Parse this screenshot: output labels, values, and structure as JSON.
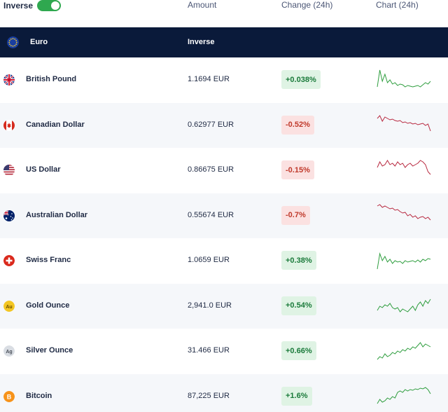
{
  "header": {
    "toggle_label": "Inverse",
    "toggle_on": true,
    "columns": [
      "Amount",
      "Change (24h)",
      "Chart (24h)"
    ],
    "toggle_color": "#2fa84f"
  },
  "base": {
    "name": "Euro",
    "column": "Inverse",
    "icon": "eu-flag-icon"
  },
  "colors": {
    "up": "#2f9e3f",
    "down": "#b8283f"
  },
  "rows": [
    {
      "name": "British Pound",
      "amount": "1.1694 EUR",
      "change": "+0.038%",
      "direction": "up",
      "icon": "uk-flag-icon",
      "spark": [
        30,
        6,
        22,
        12,
        24,
        20,
        26,
        24,
        28,
        26,
        27,
        30,
        28,
        29,
        30,
        29,
        28,
        30,
        27,
        24,
        26,
        22
      ]
    },
    {
      "name": "Canadian Dollar",
      "amount": "0.62977 EUR",
      "change": "-0.52%",
      "direction": "down",
      "icon": "canada-flag-icon",
      "spark": [
        10,
        6,
        14,
        8,
        10,
        12,
        11,
        13,
        14,
        13,
        16,
        15,
        17,
        16,
        18,
        17,
        19,
        18,
        17,
        20,
        18,
        28
      ]
    },
    {
      "name": "US Dollar",
      "amount": "0.86675 EUR",
      "change": "-0.15%",
      "direction": "down",
      "icon": "us-flag-icon",
      "spark": [
        16,
        8,
        14,
        12,
        6,
        12,
        10,
        14,
        8,
        12,
        10,
        16,
        12,
        10,
        14,
        12,
        10,
        6,
        8,
        12,
        22,
        26
      ]
    },
    {
      "name": "Australian Dollar",
      "amount": "0.55674 EUR",
      "change": "-0.7%",
      "direction": "down",
      "icon": "australia-flag-icon",
      "spark": [
        6,
        4,
        8,
        6,
        8,
        10,
        9,
        12,
        11,
        14,
        16,
        15,
        20,
        18,
        22,
        20,
        24,
        22,
        21,
        24,
        22,
        26
      ]
    },
    {
      "name": "Swiss Franc",
      "amount": "1.0659 EUR",
      "change": "+0.38%",
      "direction": "up",
      "icon": "swiss-flag-icon",
      "spark": [
        32,
        10,
        20,
        14,
        22,
        18,
        24,
        20,
        22,
        21,
        24,
        20,
        22,
        21,
        20,
        22,
        19,
        22,
        18,
        20,
        17,
        18
      ]
    },
    {
      "name": "Gold Ounce",
      "amount": "2,941.0 EUR",
      "change": "+0.54%",
      "direction": "up",
      "icon": "gold-coin-icon",
      "spark": [
        26,
        20,
        22,
        18,
        20,
        16,
        22,
        24,
        22,
        28,
        24,
        26,
        28,
        24,
        20,
        26,
        18,
        14,
        20,
        12,
        16,
        10
      ]
    },
    {
      "name": "Silver Ounce",
      "amount": "31.466 EUR",
      "change": "+0.66%",
      "direction": "up",
      "icon": "silver-coin-icon",
      "spark": [
        32,
        28,
        30,
        24,
        28,
        26,
        22,
        24,
        20,
        22,
        18,
        20,
        16,
        18,
        14,
        16,
        12,
        8,
        14,
        10,
        12,
        14
      ]
    },
    {
      "name": "Bitcoin",
      "amount": "87,225 EUR",
      "change": "+1.6%",
      "direction": "up",
      "icon": "bitcoin-icon",
      "spark": [
        30,
        24,
        28,
        26,
        22,
        24,
        20,
        22,
        14,
        12,
        14,
        10,
        12,
        10,
        11,
        9,
        10,
        8,
        9,
        7,
        10,
        16
      ]
    }
  ]
}
